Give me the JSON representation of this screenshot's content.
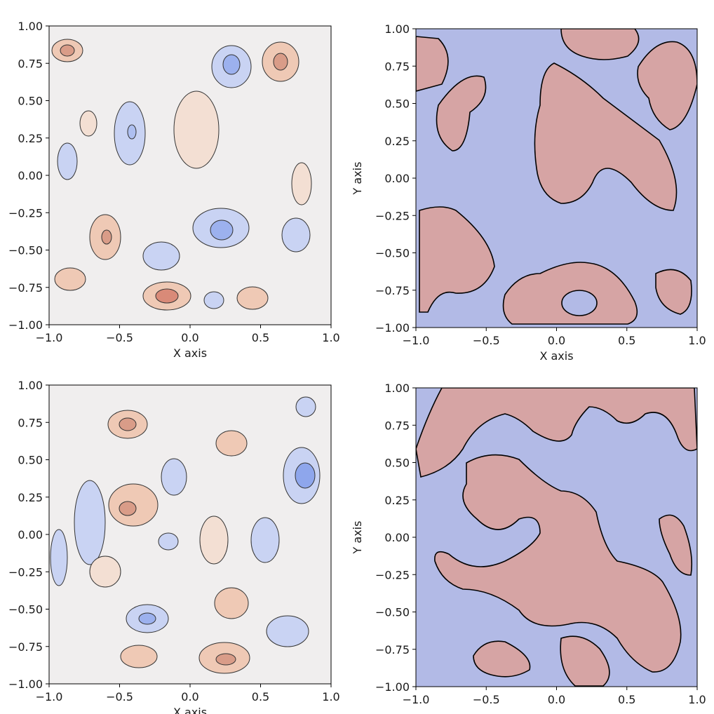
{
  "colors": {
    "cool": "#b2bae6",
    "warm": "#d6a4a4",
    "contour_line": "#000000",
    "axis": "#000000",
    "background": "#ffffff"
  },
  "chart_data": [
    {
      "type": "contour",
      "style": "multi-level filled contour",
      "colormap": "coolwarm",
      "xlim": [
        -1.0,
        1.0
      ],
      "ylim": [
        -1.0,
        1.0
      ],
      "xticks": [
        "−1.0",
        "−0.5",
        "0.0",
        "0.5",
        "1.0"
      ],
      "yticks": [
        "1.00",
        "0.75",
        "0.50",
        "0.25",
        "0.00",
        "−0.25",
        "−0.50",
        "−0.75",
        "−1.00"
      ],
      "xlabel": "X axis",
      "ylabel": ""
    },
    {
      "type": "contour",
      "style": "two-level filled contour",
      "colormap": "coolwarm",
      "xlim": [
        -1.0,
        1.0
      ],
      "ylim": [
        -1.0,
        1.0
      ],
      "xticks": [
        "−1.0",
        "−0.5",
        "0.0",
        "0.5",
        "1.0"
      ],
      "yticks": [
        "1.00",
        "0.75",
        "0.50",
        "0.25",
        "0.00",
        "−0.25",
        "−0.50",
        "−0.75",
        "−1.00"
      ],
      "xlabel": "X axis",
      "ylabel": "Y axis"
    },
    {
      "type": "contour",
      "style": "multi-level filled contour",
      "colormap": "coolwarm",
      "xlim": [
        -1.0,
        1.0
      ],
      "ylim": [
        -1.0,
        1.0
      ],
      "xticks": [
        "−1.0",
        "−0.5",
        "0.0",
        "0.5",
        "1.0"
      ],
      "yticks": [
        "1.00",
        "0.75",
        "0.50",
        "0.25",
        "0.00",
        "−0.25",
        "−0.50",
        "−0.75",
        "−1.00"
      ],
      "xlabel": "X axis",
      "ylabel": ""
    },
    {
      "type": "contour",
      "style": "two-level filled contour",
      "colormap": "coolwarm",
      "xlim": [
        -1.0,
        1.0
      ],
      "ylim": [
        -1.0,
        1.0
      ],
      "xticks": [
        "−1.0",
        "−0.5",
        "0.0",
        "0.5",
        "1.0"
      ],
      "yticks": [
        "1.00",
        "0.75",
        "0.50",
        "0.25",
        "0.00",
        "−0.25",
        "−0.50",
        "−0.75",
        "−1.00"
      ],
      "xlabel": "",
      "ylabel": "Y axis"
    }
  ]
}
